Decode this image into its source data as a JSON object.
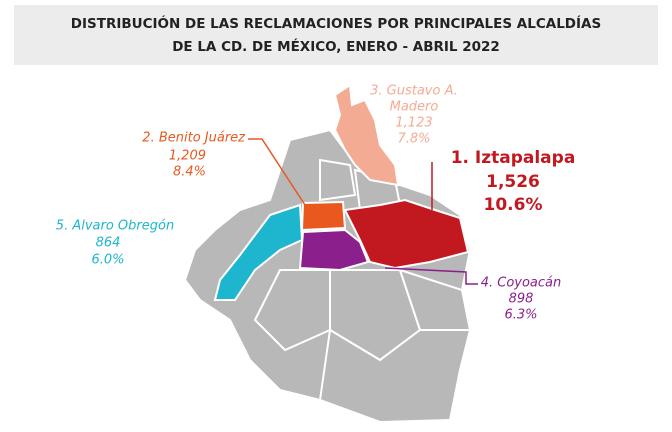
{
  "header": {
    "title": [
      "DISTRIBUCIÓN DE LAS RECLAMACIONES POR PRINCIPALES ALCALDÍAS",
      "DE LA CD. DE MÉXICO, ENERO - ABRIL 2022"
    ]
  },
  "regions": [
    {
      "label": "1. Iztapalapa",
      "count": "1,526",
      "percent": "10.6%",
      "color": "#c1191f"
    },
    {
      "label": "2. Benito Juárez",
      "count": "1,209",
      "percent": "8.4%",
      "color": "#e8581f"
    },
    {
      "label": "3. Gustavo A.",
      "label2": "Madero",
      "count": "1,123",
      "percent": "7.8%",
      "color": "#f4ab94"
    },
    {
      "label": "4. Coyoacán",
      "count": "898",
      "percent": "6.3%",
      "color": "#8b1f8c"
    },
    {
      "label": "5. Alvaro Obregón",
      "count": "864",
      "percent": "6.0%",
      "color": "#1eb5cf"
    }
  ]
}
